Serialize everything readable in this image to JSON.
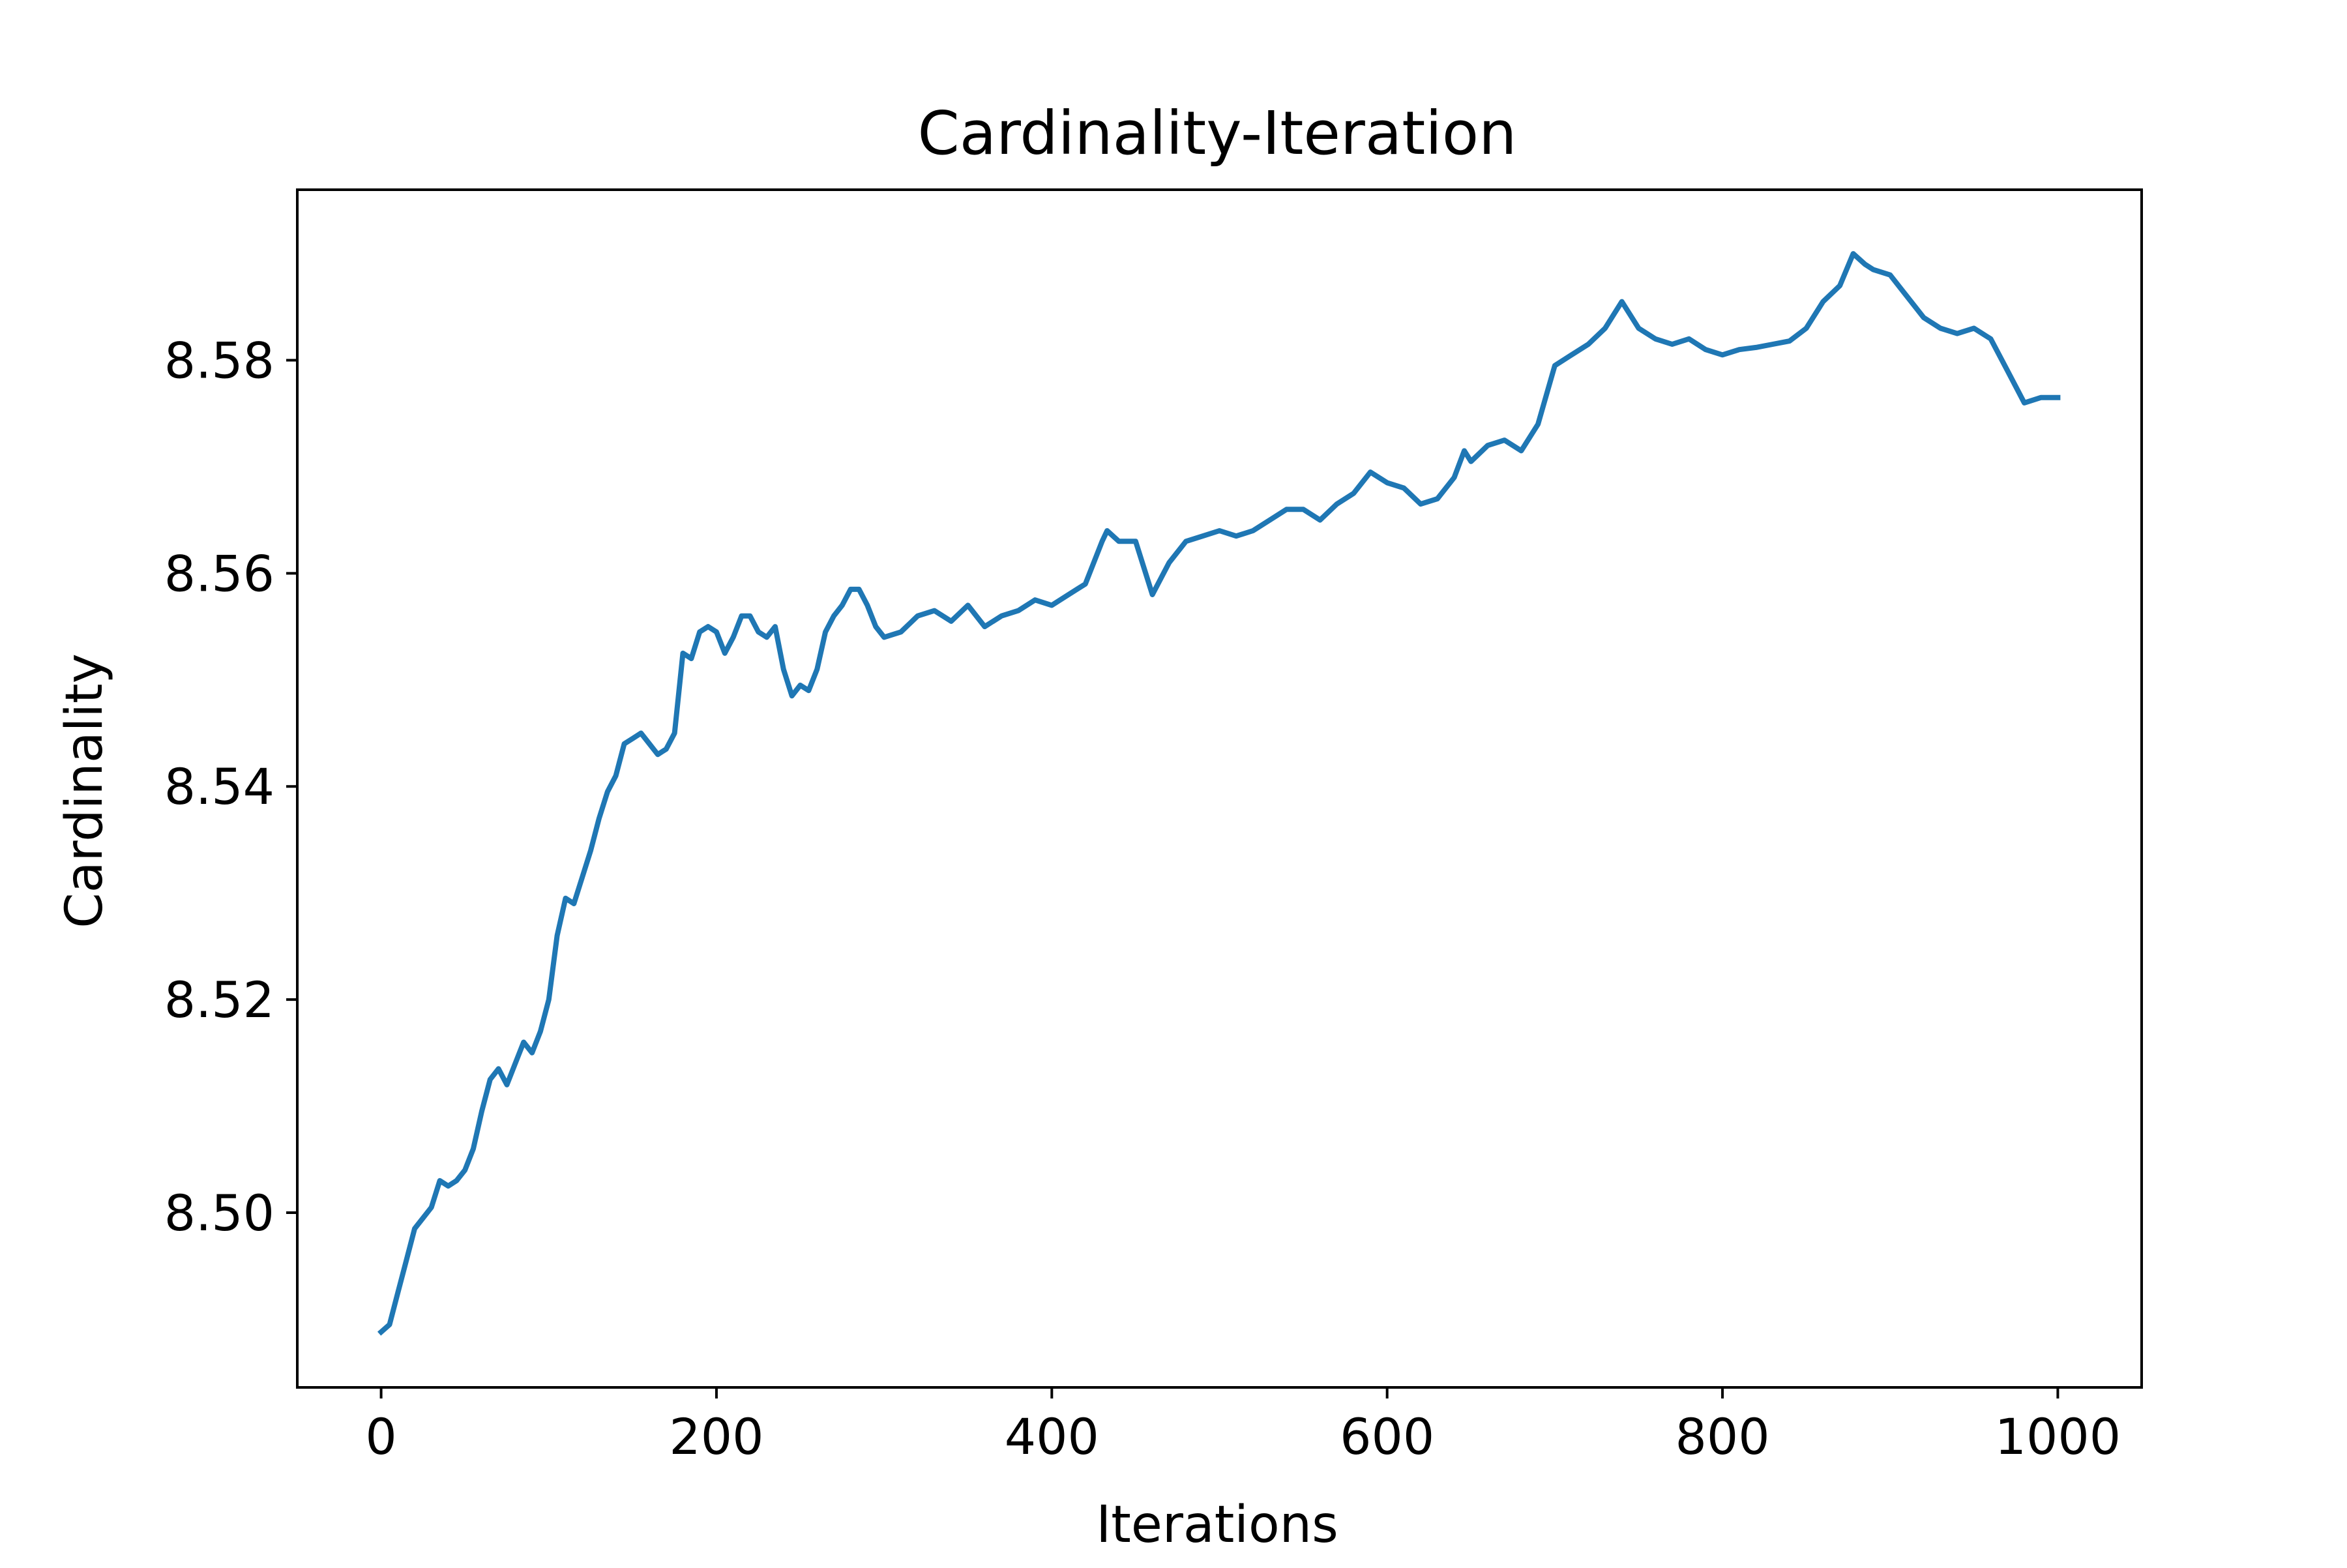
{
  "colors": {
    "background": "#ffffff",
    "axes": "#000000",
    "series": "#1f77b4"
  },
  "chart_data": {
    "type": "line",
    "title": "Cardinality-Iteration",
    "xlabel": "Iterations",
    "ylabel": "Cardinality",
    "xlim": [
      -50,
      1050
    ],
    "ylim": [
      8.4836,
      8.596
    ],
    "xticks": [
      0,
      200,
      400,
      600,
      800,
      1000
    ],
    "xtick_labels": [
      "0",
      "200",
      "400",
      "600",
      "800",
      "1000"
    ],
    "yticks": [
      8.5,
      8.52,
      8.54,
      8.56,
      8.58
    ],
    "ytick_labels": [
      "8.50",
      "8.52",
      "8.54",
      "8.56",
      "8.58"
    ],
    "grid": false,
    "legend": null,
    "series": [
      {
        "color": "#1f77b4",
        "x": [
          0,
          5,
          10,
          15,
          20,
          25,
          30,
          35,
          40,
          45,
          50,
          55,
          60,
          65,
          70,
          75,
          80,
          85,
          90,
          95,
          100,
          105,
          110,
          115,
          120,
          125,
          130,
          135,
          140,
          145,
          150,
          155,
          160,
          165,
          170,
          175,
          180,
          185,
          190,
          195,
          200,
          205,
          210,
          215,
          220,
          225,
          230,
          235,
          240,
          245,
          250,
          255,
          260,
          265,
          270,
          275,
          280,
          285,
          290,
          295,
          300,
          310,
          320,
          330,
          340,
          350,
          360,
          370,
          380,
          390,
          400,
          410,
          420,
          430,
          433,
          440,
          450,
          460,
          470,
          480,
          490,
          500,
          510,
          520,
          530,
          540,
          550,
          560,
          570,
          580,
          590,
          600,
          610,
          620,
          630,
          640,
          646,
          650,
          660,
          670,
          680,
          690,
          700,
          710,
          720,
          730,
          740,
          750,
          760,
          770,
          780,
          790,
          800,
          810,
          820,
          830,
          840,
          850,
          860,
          870,
          878,
          885,
          890,
          900,
          910,
          920,
          930,
          940,
          950,
          960,
          970,
          980,
          990,
          1000
        ],
        "y": [
          8.4888,
          8.4895,
          8.4925,
          8.4955,
          8.4985,
          8.4995,
          8.5005,
          8.503,
          8.5025,
          8.503,
          8.504,
          8.506,
          8.5095,
          8.5125,
          8.5135,
          8.512,
          8.514,
          8.516,
          8.515,
          8.517,
          8.52,
          8.526,
          8.5295,
          8.529,
          8.5315,
          8.534,
          8.537,
          8.5395,
          8.541,
          8.544,
          8.5445,
          8.545,
          8.544,
          8.543,
          8.5435,
          8.545,
          8.5525,
          8.552,
          8.5545,
          8.555,
          8.5545,
          8.5525,
          8.554,
          8.556,
          8.556,
          8.5545,
          8.554,
          8.555,
          8.551,
          8.5485,
          8.5495,
          8.549,
          8.551,
          8.5545,
          8.556,
          8.557,
          8.5585,
          8.5585,
          8.557,
          8.555,
          8.554,
          8.5545,
          8.556,
          8.5565,
          8.5555,
          8.557,
          8.555,
          8.556,
          8.5565,
          8.5575,
          8.557,
          8.558,
          8.559,
          8.563,
          8.564,
          8.563,
          8.563,
          8.558,
          8.561,
          8.563,
          8.5635,
          8.564,
          8.5635,
          8.564,
          8.565,
          8.566,
          8.566,
          8.565,
          8.5665,
          8.5675,
          8.5695,
          8.5685,
          8.568,
          8.5665,
          8.567,
          8.569,
          8.5715,
          8.5705,
          8.572,
          8.5725,
          8.5715,
          8.574,
          8.5795,
          8.5805,
          8.5815,
          8.583,
          8.5855,
          8.583,
          8.582,
          8.5815,
          8.582,
          8.581,
          8.5805,
          8.581,
          8.5812,
          8.5815,
          8.5818,
          8.583,
          8.5855,
          8.587,
          8.59,
          8.589,
          8.5885,
          8.588,
          8.586,
          8.584,
          8.583,
          8.5825,
          8.583,
          8.582,
          8.579,
          8.576,
          8.5765,
          8.5765
        ]
      }
    ]
  }
}
